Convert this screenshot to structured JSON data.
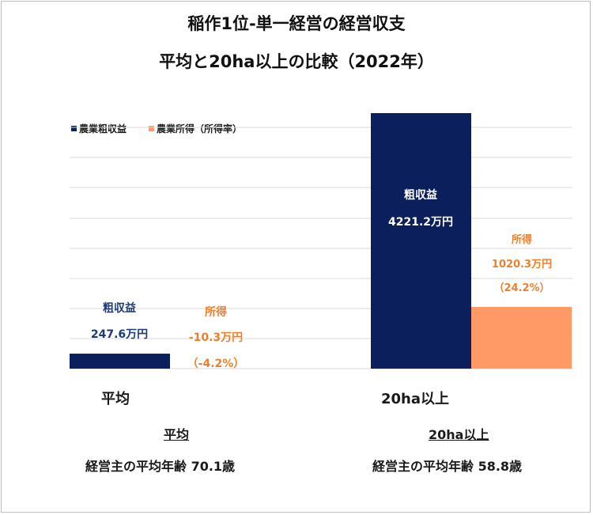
{
  "title_line1": "稲作1位-単一経営の経営収支",
  "title_line2": "平均と20ha以上の比較（2022年）",
  "legend": [
    {
      "label": "農業粗収益",
      "color": "#0b1f5c"
    },
    {
      "label": "農業所得（所得率）",
      "color": "#ff9966"
    }
  ],
  "chart_data": {
    "type": "bar",
    "categories": [
      "平均",
      "20ha以上"
    ],
    "series": [
      {
        "name": "農業粗収益",
        "values": [
          247.6,
          4221.2
        ]
      },
      {
        "name": "農業所得（所得率）",
        "values": [
          -10.3,
          1020.3
        ]
      }
    ],
    "ylim": [
      0,
      4221.2
    ],
    "grid": true,
    "legend_position": "top-left"
  },
  "labels": {
    "avg_gross_name": "粗収益",
    "avg_gross_value": "247.6万円",
    "avg_income_name": "所得",
    "avg_income_value": "-10.3万円",
    "avg_income_rate": "（-4.2%）",
    "big_gross_name": "粗収益",
    "big_gross_value": "4221.2万円",
    "big_income_name": "所得",
    "big_income_value": "1020.3万円",
    "big_income_rate": "（24.2%）"
  },
  "footer": {
    "avg_heading": "平均",
    "avg_age": "経営主の平均年齢 70.1歳",
    "big_heading": "20ha以上",
    "big_age": "経営主の平均年齢 58.8歳"
  },
  "colors": {
    "navy": "#0b1f5c",
    "orange": "#ff9966",
    "orange_text": "#f07f2c",
    "navy_text": "#1c3a7a",
    "grid": "#d9d9d9"
  }
}
